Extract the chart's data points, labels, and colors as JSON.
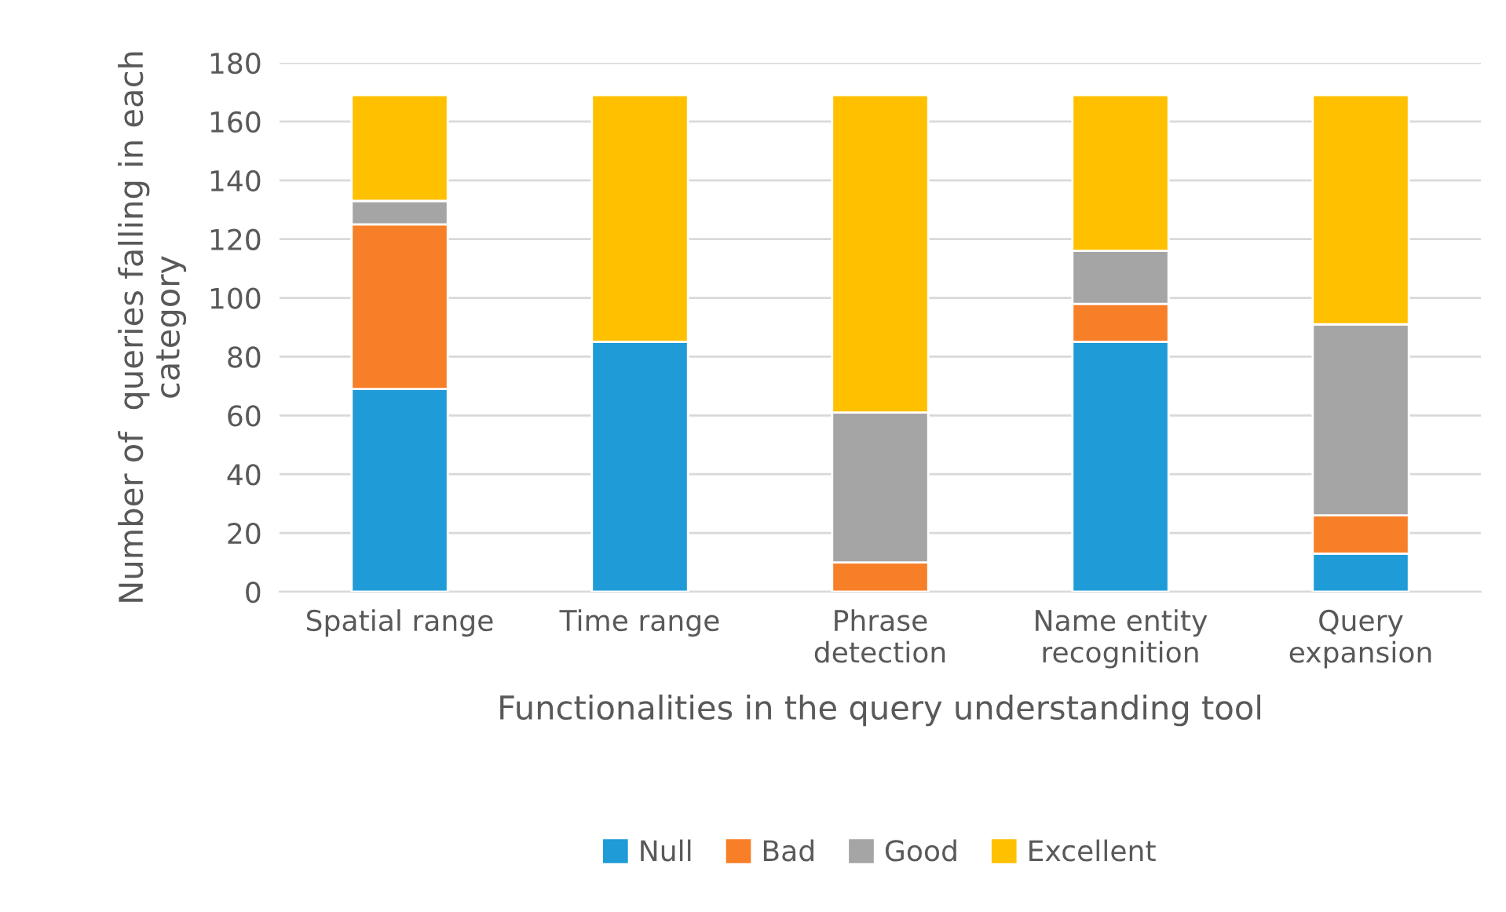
{
  "chart_data": {
    "type": "bar",
    "stacked": true,
    "xlabel": "Functionalities in the query understanding tool",
    "ylabel": "Number of  queries falling in each category",
    "categories": [
      "Spatial range",
      "Time range",
      "Phrase\ndetection",
      "Name entity\nrecognition",
      "Query\nexpansion"
    ],
    "series": [
      {
        "name": "Null",
        "color": "#1f9bd7",
        "values": [
          69,
          85,
          0,
          85,
          13
        ]
      },
      {
        "name": "Bad",
        "color": "#f77f28",
        "values": [
          56,
          0,
          10,
          13,
          13
        ]
      },
      {
        "name": "Good",
        "color": "#a5a5a5",
        "values": [
          8,
          0,
          51,
          18,
          65
        ]
      },
      {
        "name": "Excellent",
        "color": "#ffc000",
        "values": [
          36,
          84,
          108,
          53,
          78
        ]
      }
    ],
    "ylim": [
      0,
      180
    ],
    "yticks": [
      0,
      20,
      40,
      60,
      80,
      100,
      120,
      140,
      160,
      180
    ],
    "grid": "y",
    "legend": "bottom"
  }
}
